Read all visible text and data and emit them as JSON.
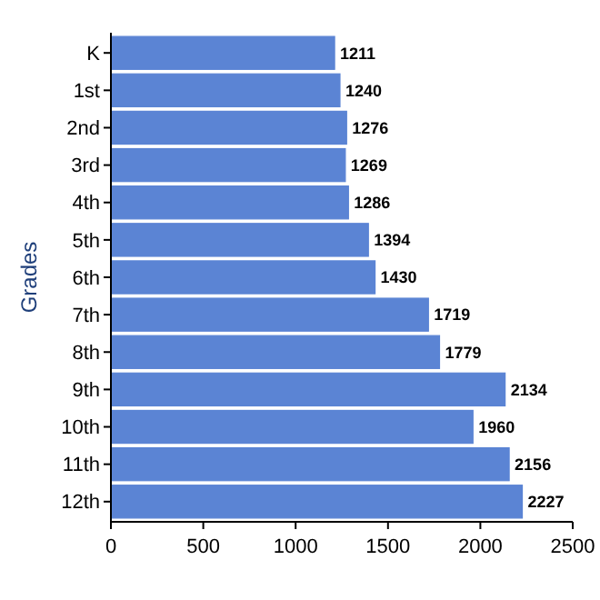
{
  "chart_data": {
    "type": "bar",
    "orientation": "horizontal",
    "ylabel": "Grades",
    "categories": [
      "K",
      "1st",
      "2nd",
      "3rd",
      "4th",
      "5th",
      "6th",
      "7th",
      "8th",
      "9th",
      "10th",
      "11th",
      "12th"
    ],
    "values": [
      1211,
      1240,
      1276,
      1269,
      1286,
      1394,
      1430,
      1719,
      1779,
      2134,
      1960,
      2156,
      2227
    ],
    "color": "#5b84d4",
    "xlim": [
      0,
      2500
    ],
    "xticks": [
      0,
      500,
      1000,
      1500,
      2000,
      2500
    ],
    "data_labels": true,
    "grid": false
  }
}
